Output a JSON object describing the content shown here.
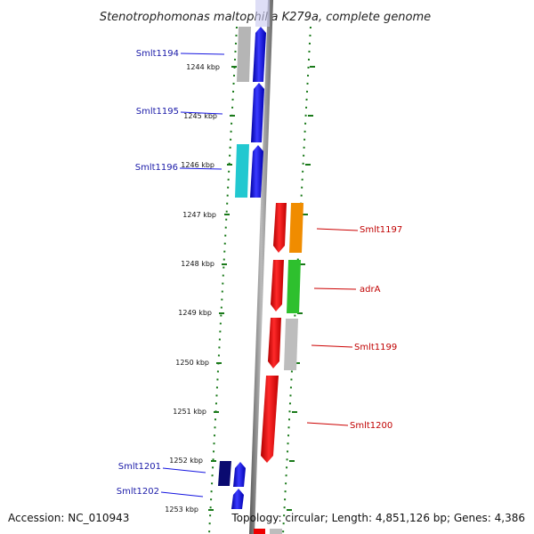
{
  "title": "Stenotrophomonas maltophilia K279a, complete genome",
  "accession": "Accession: NC_010943",
  "topology": "Topology: circular; Length: 4,851,126 bp; Genes: 4,386",
  "scale_labels": [
    {
      "label": "1244 kbp",
      "pos": 1244
    },
    {
      "label": "1245 kbp",
      "pos": 1245
    },
    {
      "label": "1246 kbp",
      "pos": 1246
    },
    {
      "label": "1247 kbp",
      "pos": 1247
    },
    {
      "label": "1248 kbp",
      "pos": 1248
    },
    {
      "label": "1249 kbp",
      "pos": 1249
    },
    {
      "label": "1250 kbp",
      "pos": 1250
    },
    {
      "label": "1251 kbp",
      "pos": 1251
    },
    {
      "label": "1252 kbp",
      "pos": 1252
    },
    {
      "label": "1253 kbp",
      "pos": 1253
    }
  ],
  "genes": [
    {
      "name": "Smlt1194",
      "side": "left",
      "color": "#1515e0",
      "cog_color": "#b5b5b5"
    },
    {
      "name": "Smlt1195",
      "side": "left",
      "color": "#1515e0",
      "cog_color": ""
    },
    {
      "name": "Smlt1196",
      "side": "left",
      "color": "#1515e0",
      "cog_color": "#22c8d0"
    },
    {
      "name": "Smlt1197",
      "side": "right",
      "color": "#ee0000",
      "cog_color": "#f08c00"
    },
    {
      "name": "adrA",
      "side": "right",
      "color": "#ee0000",
      "cog_color": "#2ec02e"
    },
    {
      "name": "Smlt1199",
      "side": "right",
      "color": "#ee0000",
      "cog_color": "#bdbdbd"
    },
    {
      "name": "Smlt1200",
      "side": "right",
      "color": "#ee0000",
      "cog_color": ""
    },
    {
      "name": "Smlt1201",
      "side": "left",
      "color": "#1515e0",
      "cog_color": "#0a0a70"
    },
    {
      "name": "Smlt1202",
      "side": "left",
      "color": "#1515e0",
      "cog_color": ""
    }
  ],
  "colors": {
    "forward": "#ee0000",
    "reverse": "#1515e0",
    "backbone": "#8a8a8a",
    "ticks": "#1a7a1a"
  }
}
